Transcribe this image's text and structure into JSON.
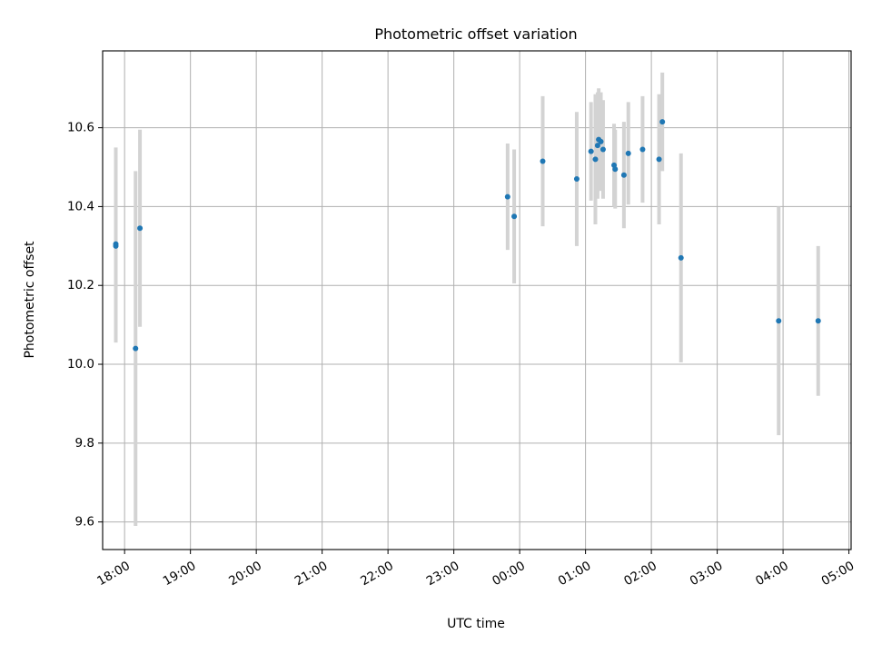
{
  "chart_data": {
    "type": "scatter",
    "title": "Photometric offset variation",
    "xlabel": "UTC time",
    "ylabel": "Photometric offset",
    "x_scale": "time",
    "xlim": [
      "17:40",
      "05:02"
    ],
    "ylim": [
      9.53,
      10.795
    ],
    "x_ticks": [
      "18:00",
      "19:00",
      "20:00",
      "21:00",
      "22:00",
      "23:00",
      "00:00",
      "01:00",
      "02:00",
      "03:00",
      "04:00",
      "05:00"
    ],
    "y_ticks": [
      9.6,
      9.8,
      10.0,
      10.2,
      10.4,
      10.6
    ],
    "y_tick_labels": [
      "9.6",
      "9.8",
      "10.0",
      "10.2",
      "10.4",
      "10.6"
    ],
    "grid": true,
    "colors": {
      "points": "#1f77b4",
      "error_bars": "#d3d3d3",
      "grid": "#b0b0b0"
    },
    "points": [
      {
        "x": "17:52",
        "y": 10.3,
        "err": 0.245
      },
      {
        "x": "17:52",
        "y": 10.305,
        "err": 0.245
      },
      {
        "x": "18:10",
        "y": 10.04,
        "err": 0.45
      },
      {
        "x": "18:14",
        "y": 10.345,
        "err": 0.25
      },
      {
        "x": "23:49",
        "y": 10.425,
        "err": 0.135
      },
      {
        "x": "23:55",
        "y": 10.375,
        "err": 0.17
      },
      {
        "x": "00:21",
        "y": 10.515,
        "err": 0.165
      },
      {
        "x": "00:52",
        "y": 10.47,
        "err": 0.17
      },
      {
        "x": "01:05",
        "y": 10.54,
        "err": 0.125
      },
      {
        "x": "01:09",
        "y": 10.52,
        "err": 0.165
      },
      {
        "x": "01:11",
        "y": 10.555,
        "err": 0.135
      },
      {
        "x": "01:12",
        "y": 10.57,
        "err": 0.13
      },
      {
        "x": "01:14",
        "y": 10.565,
        "err": 0.125
      },
      {
        "x": "01:16",
        "y": 10.545,
        "err": 0.125
      },
      {
        "x": "01:26",
        "y": 10.505,
        "err": 0.105
      },
      {
        "x": "01:27",
        "y": 10.495,
        "err": 0.1
      },
      {
        "x": "01:35",
        "y": 10.48,
        "err": 0.135
      },
      {
        "x": "01:39",
        "y": 10.535,
        "err": 0.13
      },
      {
        "x": "01:52",
        "y": 10.545,
        "err": 0.135
      },
      {
        "x": "02:07",
        "y": 10.52,
        "err": 0.165
      },
      {
        "x": "02:10",
        "y": 10.615,
        "err": 0.125
      },
      {
        "x": "02:27",
        "y": 10.27,
        "err": 0.265
      },
      {
        "x": "03:56",
        "y": 10.11,
        "err": 0.29
      },
      {
        "x": "04:32",
        "y": 10.11,
        "err": 0.19
      }
    ]
  }
}
